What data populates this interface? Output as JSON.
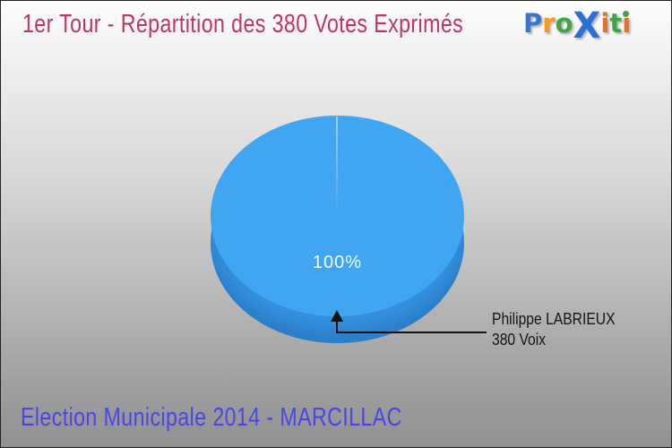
{
  "header": {
    "title": "1er Tour - Répartition des 380 Votes Exprimés",
    "logo": {
      "name": "Proxiti",
      "letters": [
        {
          "char": "P",
          "color": "#3579cf"
        },
        {
          "char": "r",
          "color": "#f59b1e"
        },
        {
          "char": "o",
          "color": "#43a447"
        },
        {
          "char": "X",
          "color": "#2a6fd2",
          "big": true
        },
        {
          "char": "i",
          "color": "#ee6f1e"
        },
        {
          "char": "t",
          "color": "#43a447"
        },
        {
          "char": "i",
          "color": "#ee6f1e",
          "dot_color": "#43a447"
        }
      ]
    }
  },
  "chart_data": {
    "type": "pie",
    "style": "3d",
    "title": "1er Tour - Répartition des 380 Votes Exprimés",
    "total_votes": 380,
    "slices": [
      {
        "label": "Philippe LABRIEUX",
        "votes": 380,
        "percent": 100,
        "color": "#41a6f1"
      }
    ],
    "percent_label": "100%",
    "legend_position": "none",
    "callout": {
      "line1": "Philippe LABRIEUX",
      "line2": "380 Voix"
    }
  },
  "footer": {
    "title": "Election Municipale 2014 - MARCILLAC"
  },
  "colors": {
    "title_text": "#c23462",
    "footer_text": "#4a45e8",
    "pie_top": "#41a6f1",
    "pie_side": "#3392e0",
    "arrow": "#121212",
    "percent_text": "#ffffff",
    "background_top": "#fdfdfd",
    "background_bottom": "#919191"
  }
}
